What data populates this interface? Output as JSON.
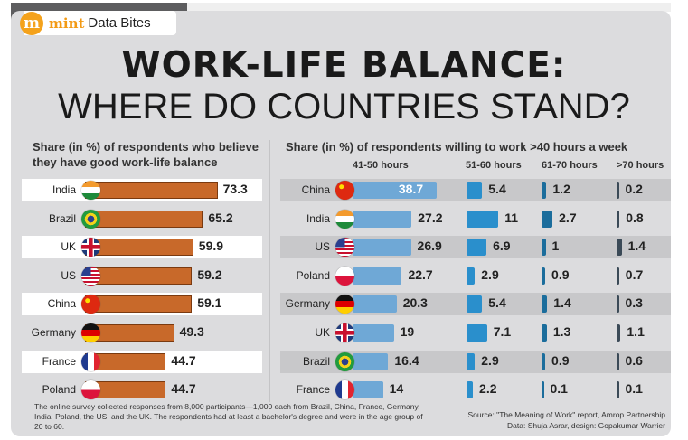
{
  "brand": {
    "logo": "m",
    "name": "mint",
    "section": "Data Bites"
  },
  "title": {
    "line1": "WORK-LIFE BALANCE:",
    "line2": "WHERE DO COUNTRIES STAND?"
  },
  "left": {
    "subtitle_1": "Share (in %) of respondents who believe",
    "subtitle_2": "they have good work-life balance"
  },
  "right": {
    "subtitle": "Share (in %) of respondents willing to work >40 hours a week",
    "columns": [
      "41-50 hours",
      "51-60 hours",
      "61-70 hours",
      ">70 hours"
    ]
  },
  "chart_data": [
    {
      "type": "bar",
      "title": "Share (in %) of respondents who believe they have good work-life balance",
      "categories": [
        "India",
        "Brazil",
        "UK",
        "US",
        "China",
        "Germany",
        "France",
        "Poland"
      ],
      "values": [
        73.3,
        65.2,
        59.9,
        59.2,
        59.1,
        49.3,
        44.7,
        44.7
      ]
    },
    {
      "type": "bar",
      "title": "Share (in %) of respondents willing to work >40 hours a week",
      "categories": [
        "China",
        "India",
        "US",
        "Poland",
        "Germany",
        "UK",
        "Brazil",
        "France"
      ],
      "series": [
        {
          "name": "41-50 hours",
          "values": [
            38.7,
            27.2,
            26.9,
            22.7,
            20.3,
            19,
            16.4,
            14
          ]
        },
        {
          "name": "51-60 hours",
          "values": [
            5.4,
            11,
            6.9,
            2.9,
            5.4,
            7.1,
            2.9,
            2.2
          ]
        },
        {
          "name": "61-70 hours",
          "values": [
            1.2,
            2.7,
            1,
            0.9,
            1.4,
            1.3,
            0.9,
            0.1
          ]
        },
        {
          "name": ">70 hours",
          "values": [
            0.2,
            0.8,
            1.4,
            0.7,
            0.3,
            1.1,
            0.6,
            0.1
          ]
        }
      ]
    }
  ],
  "colors": {
    "orange": "#c8692a",
    "c1": "#6fa8d6",
    "c2": "#2a8fcc",
    "c3": "#1b6d9c",
    "c4": "#3b4a57"
  },
  "footer": {
    "note": "The online survey collected responses from 8,000 participants—1,000 each from Brazil, China, France, Germany, India, Poland, the US, and the UK. The respondents had at least a bachelor's degree and were in the age group of 20 to 60.",
    "source": "Source: \"The Meaning of Work\" report, Amrop Partnership",
    "credit": "Data: Shuja Asrar, design: Gopakumar Warrier"
  }
}
